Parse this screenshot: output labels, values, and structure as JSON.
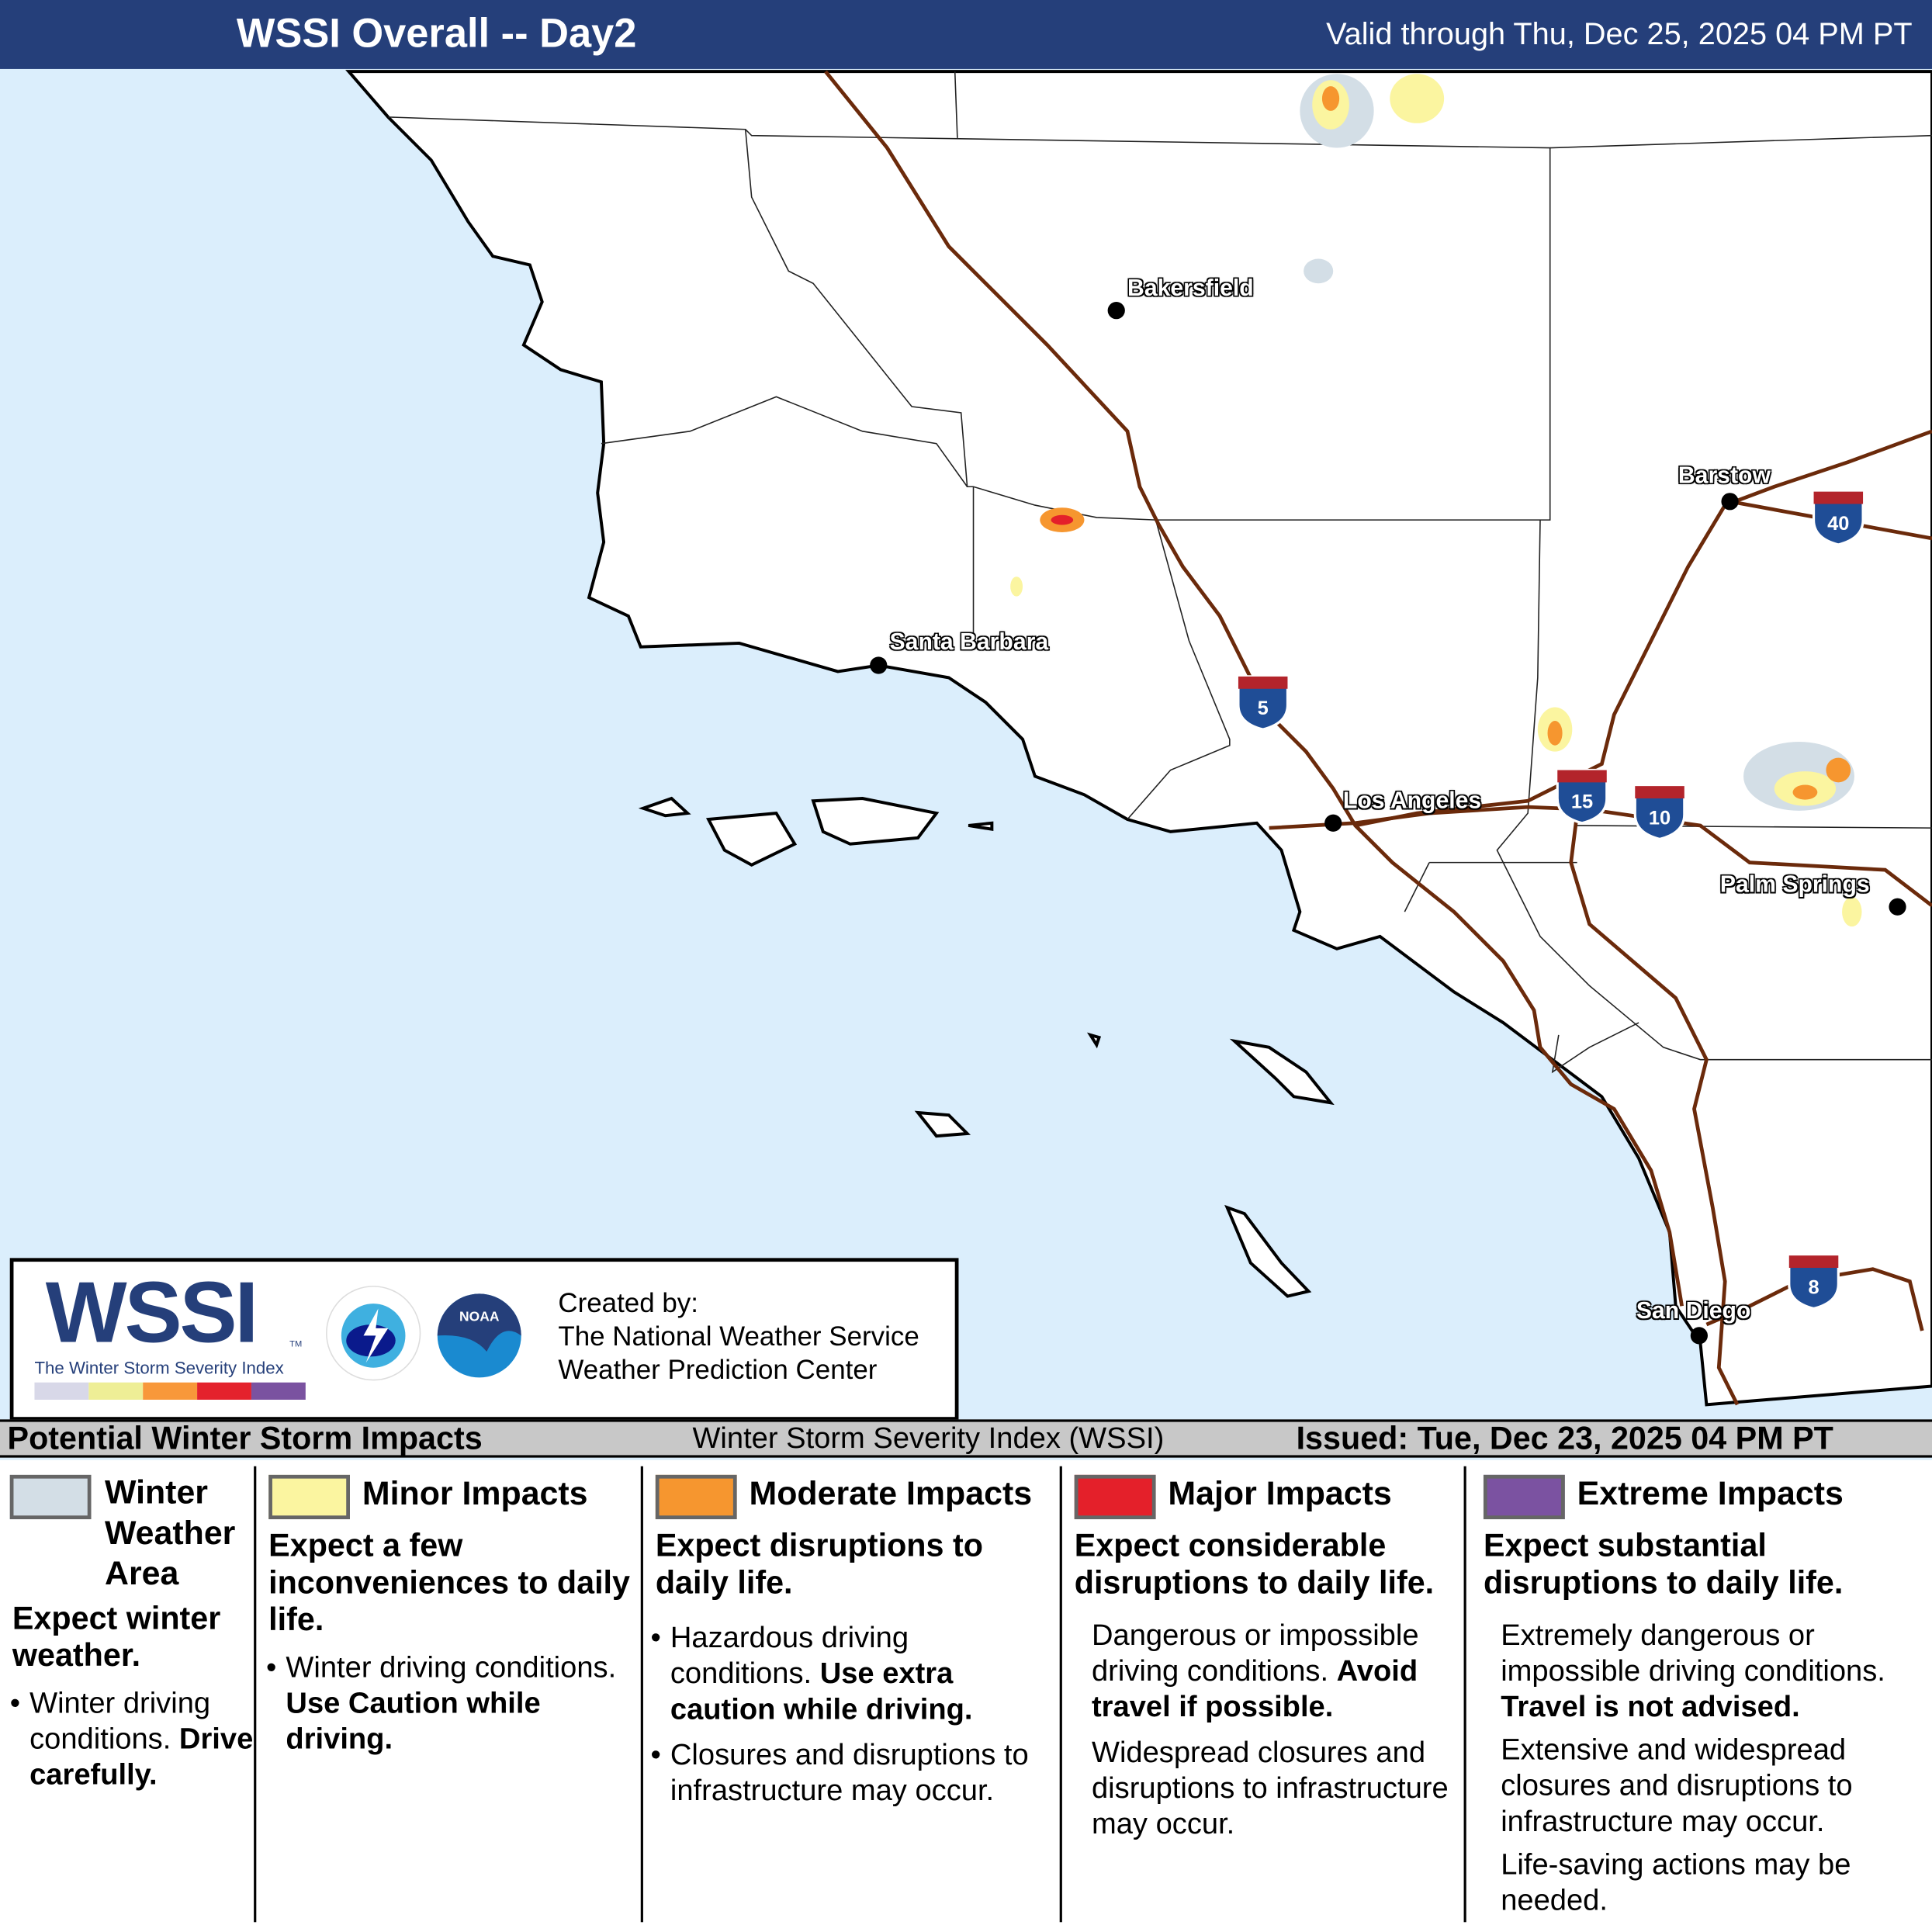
{
  "header": {
    "title": "WSSI Overall -- Day2",
    "valid": "Valid through Thu, Dec 25, 2025 04 PM PT",
    "background": "#253f7a"
  },
  "map": {
    "ocean_color": "#dbeefc",
    "road_color": "#6b2a0b",
    "cities": [
      {
        "name": "Bakersfield"
      },
      {
        "name": "Santa Barbara"
      },
      {
        "name": "Los Angeles"
      },
      {
        "name": "Barstow"
      },
      {
        "name": "Palm Springs"
      },
      {
        "name": "San Diego"
      }
    ],
    "interstates": [
      "5",
      "40",
      "15",
      "10",
      "8"
    ]
  },
  "logo": {
    "wssi": "WSSI",
    "tm": "TM",
    "subtitle": "The Winter Storm Severity Index",
    "nws": "NATIONAL WEATHER SERVICE",
    "noaa": "NOAA",
    "credit": [
      "Created by:",
      "The National Weather Service",
      "Weather Prediction Center"
    ],
    "scale_colors": [
      "#d8d8e8",
      "#eeee96",
      "#f8983a",
      "#e4222c",
      "#7a52a0"
    ]
  },
  "legend": {
    "title": "Potential Winter Storm Impacts",
    "index_name": "Winter Storm Severity Index (WSSI)",
    "issued": "Issued: Tue, Dec 23, 2025 04 PM PT",
    "categories": [
      {
        "name_lines": [
          "Winter",
          "Weather",
          "Area"
        ],
        "color": "#d3dee6",
        "summary": "Expect winter weather.",
        "bullet": "Winter driving conditions.",
        "bold": "Drive carefully."
      },
      {
        "name": "Minor Impacts",
        "color": "#fbf5a0",
        "summary": "Expect a few inconveniences to daily life.",
        "bullet": "Winter driving conditions.",
        "bold": "Use Caution while driving."
      },
      {
        "name": "Moderate Impacts",
        "color": "#f6962f",
        "summary": "Expect disruptions to daily life.",
        "bullet": "Hazardous driving conditions.",
        "bold": "Use extra caution while driving.",
        "bullet2": "Closures and disruptions to infrastructure may occur."
      },
      {
        "name": "Major Impacts",
        "color": "#e4202a",
        "summary": "Expect considerable disruptions to daily life.",
        "bullet": "Dangerous or impossible driving conditions.",
        "bold": "Avoid travel if possible.",
        "bullet2": "Widespread closures and disruptions to infrastructure may occur."
      },
      {
        "name": "Extreme Impacts",
        "color": "#7b52a1",
        "summary": "Expect substantial disruptions to daily life.",
        "bullet": "Extremely dangerous or impossible driving conditions.",
        "bold": "Travel is not advised.",
        "bullet2": "Extensive and widespread closures and disruptions to infrastructure may occur.",
        "bullet3": "Life-saving actions may be needed."
      }
    ]
  }
}
